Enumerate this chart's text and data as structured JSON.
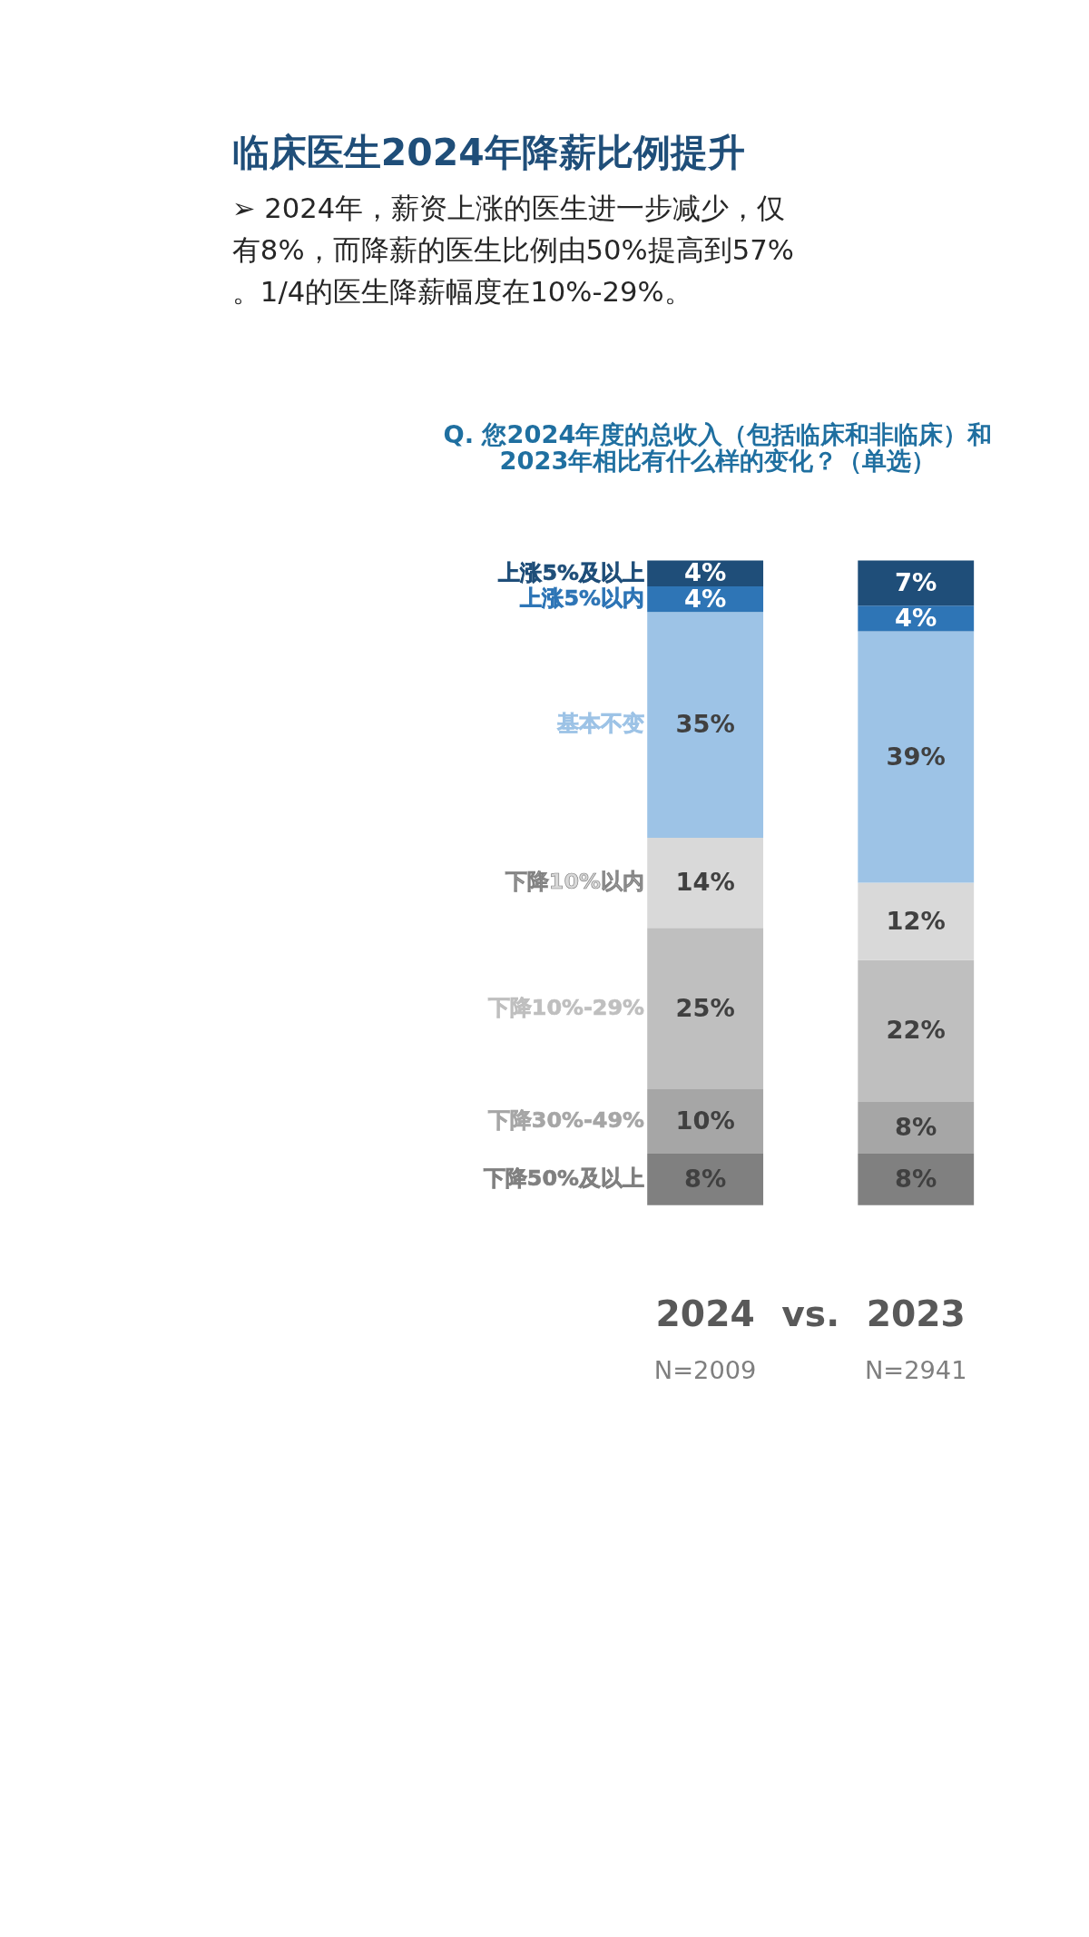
{
  "chart_data": {
    "type": "bar",
    "title": "临床医生2024年降薪比例提升",
    "subtitle": "➢ 2024年，薪资上涨的医生进一步减少，仅有8%，而降薪的医生比例由50%提高到57%。1/4的医生降薪幅度在10%-29%。",
    "categories": [
      "2024",
      "2023"
    ],
    "stacked": true,
    "series": [
      {
        "name": "下降50%及以上",
        "color": "#808080",
        "values": [
          8,
          8
        ],
        "value_labels": [
          "8%",
          "8%"
        ]
      },
      {
        "name": "下降30%-49%",
        "color": "#a6a6a6",
        "values": [
          10,
          8
        ],
        "value_labels": [
          "10%",
          "8%"
        ]
      },
      {
        "name": "下降10%-29%",
        "color": "#bfbfbf",
        "values": [
          25,
          22
        ],
        "value_labels": [
          "25%",
          "22%"
        ]
      },
      {
        "name": "下降10%以内",
        "color": "#d9d9d9",
        "values": [
          14,
          12
        ],
        "value_labels": [
          "14%",
          "12%"
        ]
      },
      {
        "name": "基本不变",
        "color": "#9dc3e6",
        "values": [
          35,
          39
        ],
        "value_labels": [
          "35%",
          "39%"
        ]
      },
      {
        "name": "上涨5%以内",
        "color": "#2e75b6",
        "values": [
          4,
          4
        ],
        "value_labels": [
          "4%",
          "4%"
        ]
      },
      {
        "name": "上涨5%及以上",
        "color": "#1f4e79",
        "values": [
          4,
          7
        ],
        "value_labels": [
          "4%",
          "7%"
        ]
      }
    ],
    "annotations": [
      "Q. 您2024年度的总收入（包括临床和非临床）和2023年相比有什么样的变化？（单选）",
      "vs.",
      "N=2009",
      "N=2941"
    ]
  }
}
